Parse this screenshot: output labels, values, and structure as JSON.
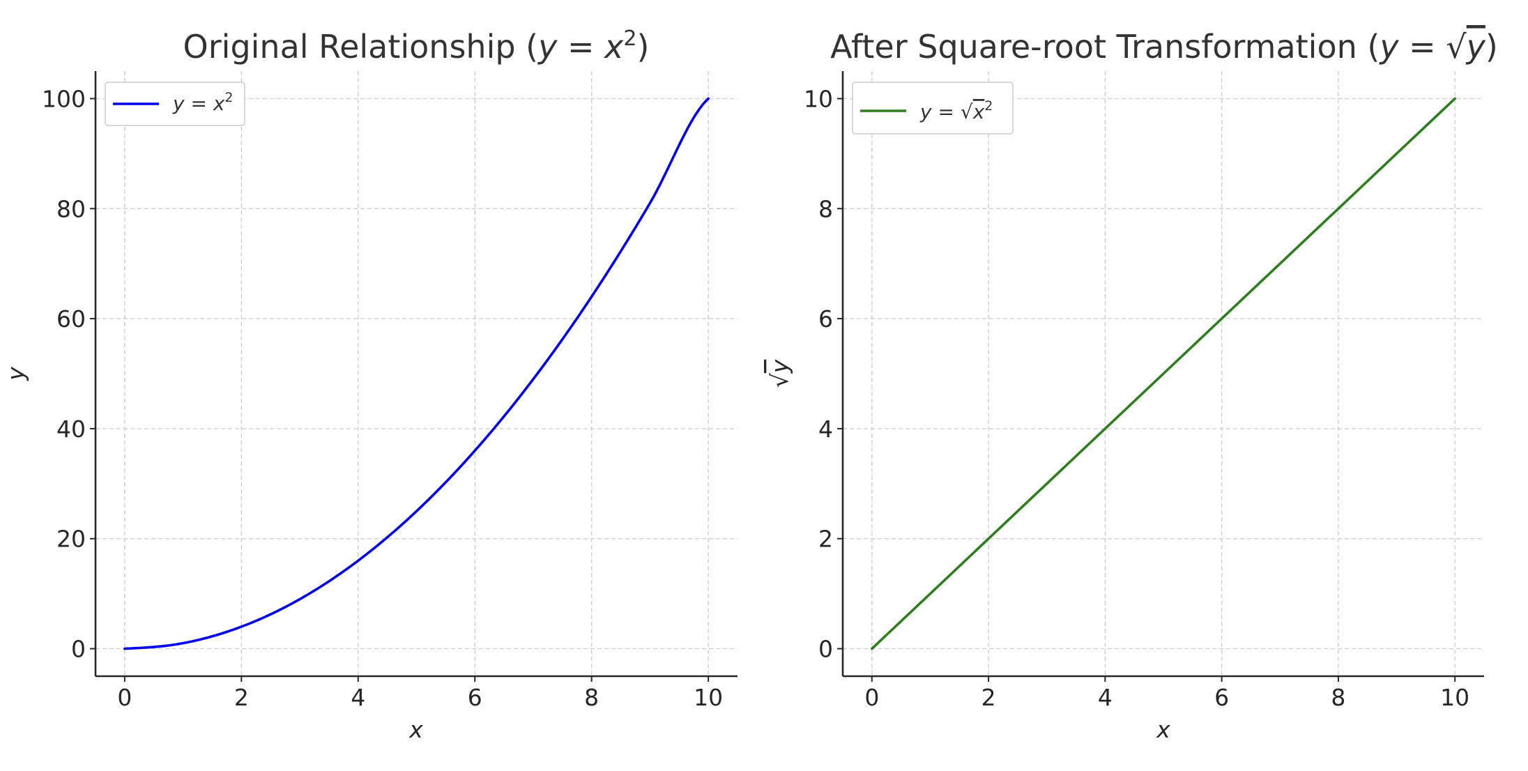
{
  "chart_data": [
    {
      "type": "line",
      "title": "Original Relationship (y = x²)",
      "title_parts": {
        "pre": "Original Relationship (",
        "var": "y",
        "eq": " = ",
        "base": "x",
        "sup": "2",
        "post": ")"
      },
      "xlabel": "x",
      "ylabel": "y",
      "xlim": [
        -0.5,
        10.5
      ],
      "ylim": [
        -5,
        105
      ],
      "xticks": [
        0,
        2,
        4,
        6,
        8,
        10
      ],
      "yticks": [
        0,
        20,
        40,
        60,
        80,
        100
      ],
      "grid": true,
      "legend_position": "top-left",
      "series": [
        {
          "name": "y = x²",
          "legend_parts": {
            "var": "y",
            "eq": " = ",
            "base": "x",
            "sup": "2"
          },
          "color": "#0000ee",
          "x": [
            0,
            1,
            2,
            3,
            4,
            5,
            6,
            7,
            8,
            9,
            10
          ],
          "y": [
            0,
            1,
            4,
            9,
            16,
            25,
            36,
            49,
            64,
            81,
            100
          ]
        }
      ]
    },
    {
      "type": "line",
      "title": "After Square-root Transformation (y = √y)",
      "title_parts": {
        "pre": "After Square-root Transformation (",
        "var": "y",
        "eq": " = ",
        "rad": "√",
        "radvar": "y",
        "post": ")"
      },
      "xlabel": "x",
      "ylabel": "√y",
      "ylabel_parts": {
        "rad": "√",
        "var": "y"
      },
      "xlim": [
        -0.5,
        10.5
      ],
      "ylim": [
        -0.5,
        10.5
      ],
      "xticks": [
        0,
        2,
        4,
        6,
        8,
        10
      ],
      "yticks": [
        0,
        2,
        4,
        6,
        8,
        10
      ],
      "grid": true,
      "legend_position": "top-left",
      "series": [
        {
          "name": "y = √x²",
          "legend_parts": {
            "var": "y",
            "eq": " = ",
            "rad": "√",
            "base": "x",
            "sup": "2"
          },
          "color": "#2e7d1e",
          "x": [
            0,
            1,
            2,
            3,
            4,
            5,
            6,
            7,
            8,
            9,
            10
          ],
          "y": [
            0,
            1,
            2,
            3,
            4,
            5,
            6,
            7,
            8,
            9,
            10
          ]
        }
      ]
    }
  ]
}
